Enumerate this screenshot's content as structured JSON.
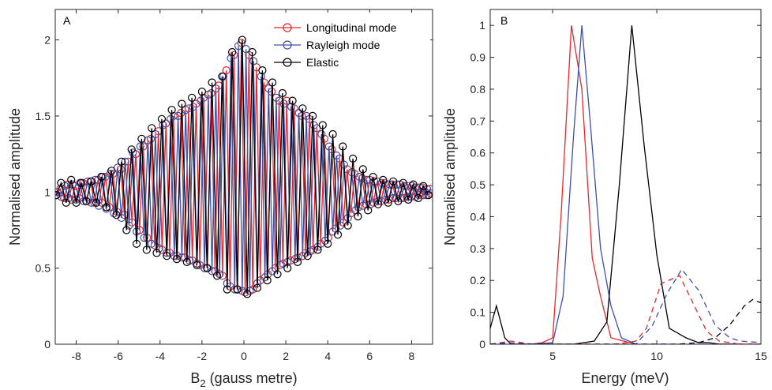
{
  "chart_data": [
    {
      "type": "line",
      "panel_label": "A",
      "xlabel": "B",
      "xlabel_sub": "2",
      "xlabel_suffix": " (gauss metre)",
      "ylabel": "Normalised amplitude",
      "xlim": [
        -9,
        9
      ],
      "ylim": [
        0,
        2.2
      ],
      "xticks": [
        -8,
        -6,
        -4,
        -2,
        0,
        2,
        4,
        6,
        8
      ],
      "yticks": [
        0,
        0.5,
        1,
        1.5,
        2
      ],
      "grid": false,
      "legend_position": "top-right",
      "markers": "circle",
      "series": [
        {
          "name": "Longitudinal mode",
          "color": "#e8262b",
          "x": [
            -8.94,
            -8.76,
            -8.58,
            -8.4,
            -8.22,
            -8.04,
            -7.86,
            -7.68,
            -7.5,
            -7.32,
            -7.14,
            -6.96,
            -6.78,
            -6.6,
            -6.42,
            -6.24,
            -6.06,
            -5.88,
            -5.7,
            -5.52,
            -5.34,
            -5.16,
            -4.98,
            -4.8,
            -4.62,
            -4.44,
            -4.26,
            -4.08,
            -3.9,
            -3.72,
            -3.54,
            -3.36,
            -3.18,
            -3.0,
            -2.82,
            -2.64,
            -2.46,
            -2.28,
            -2.1,
            -1.92,
            -1.74,
            -1.56,
            -1.38,
            -1.2,
            -1.02,
            -0.84,
            -0.66,
            -0.48,
            -0.3,
            -0.12,
            0.06,
            0.24,
            0.42,
            0.6,
            0.78,
            0.96,
            1.14,
            1.32,
            1.5,
            1.68,
            1.86,
            2.04,
            2.22,
            2.4,
            2.58,
            2.76,
            2.94,
            3.12,
            3.3,
            3.48,
            3.66,
            3.84,
            4.02,
            4.2,
            4.38,
            4.56,
            4.74,
            4.92,
            5.1,
            5.28,
            5.46,
            5.64,
            5.82,
            6.0,
            6.18,
            6.36,
            6.54,
            6.72,
            6.9,
            7.08,
            7.26,
            7.44,
            7.62,
            7.8,
            7.98,
            8.16,
            8.34,
            8.52,
            8.7,
            8.88
          ],
          "y": [
            0.98,
            1.02,
            0.96,
            1.05,
            0.95,
            1.04,
            0.96,
            1.06,
            0.94,
            1.07,
            0.93,
            1.08,
            0.93,
            1.1,
            0.9,
            1.12,
            0.87,
            1.15,
            0.85,
            1.2,
            0.8,
            1.25,
            0.75,
            1.3,
            0.7,
            1.35,
            0.65,
            1.4,
            0.62,
            1.45,
            0.6,
            1.5,
            0.58,
            1.52,
            0.57,
            1.55,
            0.55,
            1.58,
            0.52,
            1.62,
            0.5,
            1.65,
            0.48,
            1.7,
            0.45,
            1.8,
            0.38,
            1.9,
            0.36,
            1.98,
            0.34,
            1.9,
            0.36,
            1.82,
            0.42,
            1.72,
            0.46,
            1.66,
            0.5,
            1.6,
            0.53,
            1.6,
            0.55,
            1.55,
            0.57,
            1.5,
            0.6,
            1.48,
            0.62,
            1.42,
            0.66,
            1.35,
            0.7,
            1.28,
            0.76,
            1.22,
            0.8,
            1.15,
            0.86,
            1.12,
            0.9,
            1.09,
            0.92,
            1.08,
            0.93,
            1.07,
            0.94,
            1.06,
            0.95,
            1.05,
            0.96,
            1.05,
            0.96,
            1.04,
            0.97,
            1.03,
            0.98,
            1.03,
            0.98,
            1.02
          ]
        },
        {
          "name": "Rayleigh mode",
          "color": "#3c4fae",
          "x": [
            -8.9,
            -8.72,
            -8.54,
            -8.36,
            -8.18,
            -8.0,
            -7.82,
            -7.64,
            -7.46,
            -7.28,
            -7.1,
            -6.92,
            -6.74,
            -6.56,
            -6.38,
            -6.2,
            -6.02,
            -5.84,
            -5.66,
            -5.48,
            -5.3,
            -5.12,
            -4.94,
            -4.76,
            -4.58,
            -4.4,
            -4.22,
            -4.04,
            -3.86,
            -3.68,
            -3.5,
            -3.32,
            -3.14,
            -2.96,
            -2.78,
            -2.6,
            -2.42,
            -2.24,
            -2.06,
            -1.88,
            -1.7,
            -1.52,
            -1.34,
            -1.16,
            -0.98,
            -0.8,
            -0.62,
            -0.44,
            -0.26,
            -0.08,
            0.1,
            0.28,
            0.46,
            0.64,
            0.82,
            1.0,
            1.18,
            1.36,
            1.54,
            1.72,
            1.9,
            2.08,
            2.26,
            2.44,
            2.62,
            2.8,
            2.98,
            3.16,
            3.34,
            3.52,
            3.7,
            3.88,
            4.06,
            4.24,
            4.42,
            4.6,
            4.78,
            4.96,
            5.14,
            5.32,
            5.5,
            5.68,
            5.86,
            6.04,
            6.22,
            6.4,
            6.58,
            6.76,
            6.94,
            7.12,
            7.3,
            7.48,
            7.66,
            7.84,
            8.02,
            8.2,
            8.38,
            8.56,
            8.74,
            8.92
          ],
          "y": [
            1.0,
            0.97,
            1.04,
            0.96,
            1.05,
            0.95,
            1.06,
            0.94,
            1.07,
            0.93,
            1.08,
            0.91,
            1.1,
            0.89,
            1.12,
            0.86,
            1.16,
            0.83,
            1.2,
            0.78,
            1.26,
            0.74,
            1.3,
            0.7,
            1.34,
            0.66,
            1.38,
            0.63,
            1.44,
            0.6,
            1.48,
            0.58,
            1.5,
            0.57,
            1.54,
            0.55,
            1.56,
            0.53,
            1.6,
            0.5,
            1.64,
            0.48,
            1.68,
            0.46,
            1.76,
            0.4,
            1.88,
            0.36,
            1.96,
            0.35,
            1.94,
            0.35,
            1.86,
            0.4,
            1.76,
            0.44,
            1.68,
            0.48,
            1.62,
            0.52,
            1.58,
            0.54,
            1.56,
            0.56,
            1.52,
            0.58,
            1.5,
            0.61,
            1.44,
            0.64,
            1.38,
            0.68,
            1.3,
            0.74,
            1.24,
            0.78,
            1.18,
            0.83,
            1.13,
            0.88,
            1.1,
            0.91,
            1.08,
            0.92,
            1.07,
            0.94,
            1.06,
            0.95,
            1.05,
            0.96,
            1.05,
            0.96,
            1.04,
            0.97,
            1.04,
            0.97,
            1.03,
            0.98,
            1.02,
            0.99
          ]
        },
        {
          "name": "Elastic",
          "color": "#000000",
          "x": [
            -8.96,
            -8.72,
            -8.48,
            -8.24,
            -8.0,
            -7.76,
            -7.52,
            -7.28,
            -7.04,
            -6.8,
            -6.56,
            -6.32,
            -6.08,
            -5.84,
            -5.6,
            -5.36,
            -5.12,
            -4.88,
            -4.64,
            -4.4,
            -4.16,
            -3.92,
            -3.68,
            -3.44,
            -3.2,
            -2.96,
            -2.72,
            -2.48,
            -2.24,
            -2.0,
            -1.76,
            -1.52,
            -1.28,
            -1.04,
            -0.8,
            -0.56,
            -0.32,
            -0.08,
            0.16,
            0.4,
            0.64,
            0.88,
            1.12,
            1.36,
            1.6,
            1.84,
            2.08,
            2.32,
            2.56,
            2.8,
            3.04,
            3.28,
            3.52,
            3.76,
            4.0,
            4.24,
            4.48,
            4.72,
            4.96,
            5.2,
            5.44,
            5.68,
            5.92,
            6.16,
            6.4,
            6.64,
            6.88,
            7.12,
            7.36,
            7.6,
            7.84,
            8.08,
            8.32,
            8.56,
            8.8
          ],
          "y": [
            0.98,
            1.06,
            0.93,
            1.08,
            0.93,
            1.06,
            0.94,
            1.07,
            0.93,
            1.1,
            0.9,
            1.14,
            0.85,
            1.2,
            0.75,
            1.28,
            0.66,
            1.35,
            0.62,
            1.42,
            0.6,
            1.48,
            0.58,
            1.54,
            0.56,
            1.58,
            0.54,
            1.62,
            0.52,
            1.66,
            0.5,
            1.72,
            0.45,
            1.76,
            0.36,
            1.92,
            0.36,
            2.0,
            0.33,
            1.92,
            0.37,
            1.8,
            0.42,
            1.72,
            0.46,
            1.65,
            0.5,
            1.6,
            0.54,
            1.55,
            0.58,
            1.5,
            0.62,
            1.44,
            0.66,
            1.38,
            0.72,
            1.3,
            0.78,
            1.22,
            0.84,
            1.15,
            0.88,
            1.1,
            0.92,
            1.08,
            0.93,
            1.07,
            0.94,
            1.06,
            0.95,
            1.05,
            0.96,
            1.04,
            0.98
          ]
        }
      ]
    },
    {
      "type": "line",
      "panel_label": "B",
      "xlabel": "Energy (meV)",
      "ylabel": "Normalised amplitude",
      "xlim": [
        2,
        15
      ],
      "ylim": [
        0,
        1.05
      ],
      "xticks": [
        5,
        10,
        15
      ],
      "yticks": [
        0,
        0.1,
        0.2,
        0.3,
        0.4,
        0.5,
        0.6,
        0.7,
        0.8,
        0.9,
        1
      ],
      "grid": false,
      "series": [
        {
          "color": "#e8262b",
          "style": "solid",
          "x": [
            2.0,
            3.0,
            4.0,
            4.5,
            5.0,
            5.4,
            5.9,
            6.4,
            6.9,
            7.3,
            7.8,
            8.4,
            9.0,
            10,
            15
          ],
          "y": [
            0.0,
            0.0,
            0.0,
            0.005,
            0.02,
            0.4,
            1.0,
            0.8,
            0.27,
            0.15,
            0.02,
            0.01,
            0.0,
            0.0,
            0.0
          ]
        },
        {
          "color": "#3c4fae",
          "style": "solid",
          "x": [
            2.0,
            3.0,
            4.0,
            5.0,
            5.5,
            6.0,
            6.4,
            6.8,
            7.3,
            7.8,
            8.3,
            9.0,
            10,
            15
          ],
          "y": [
            0.0,
            0.0,
            0.0,
            0.005,
            0.15,
            0.65,
            1.0,
            0.7,
            0.3,
            0.12,
            0.02,
            0.0,
            0.0,
            0.0
          ]
        },
        {
          "color": "#000000",
          "style": "solid",
          "x": [
            2.0,
            2.3,
            2.7,
            3.0,
            4.0,
            5.0,
            6.0,
            7.0,
            7.6,
            8.2,
            8.8,
            9.4,
            10.0,
            10.6,
            11.4,
            12.0,
            12.5,
            13.0,
            14.0,
            15.0
          ],
          "y": [
            0.05,
            0.12,
            0.02,
            0.0,
            0.0,
            0.0,
            0.0,
            0.01,
            0.07,
            0.5,
            1.0,
            0.62,
            0.28,
            0.05,
            0.02,
            0.005,
            0.005,
            0.0,
            0.0,
            0.0
          ]
        },
        {
          "color": "#e8262b",
          "style": "dashed",
          "x": [
            2.0,
            3.0,
            4.0,
            5.0,
            6.0,
            7.0,
            8.0,
            9.0,
            9.5,
            10.2,
            11.1,
            11.8,
            12.4,
            13.0,
            14.0,
            15.0
          ],
          "y": [
            0.0,
            0.01,
            0.0,
            0.0,
            0.0,
            0.0,
            0.0,
            0.01,
            0.05,
            0.19,
            0.215,
            0.12,
            0.04,
            0.01,
            0.0,
            0.0
          ]
        },
        {
          "color": "#3c4fae",
          "style": "dashed",
          "x": [
            2.0,
            3.0,
            4.0,
            5.0,
            6.0,
            7.0,
            8.0,
            9.0,
            9.8,
            10.5,
            11.2,
            12.0,
            12.8,
            13.5,
            14.0,
            15.0
          ],
          "y": [
            0.0,
            0.005,
            0.0,
            0.0,
            0.0,
            0.0,
            0.0,
            0.0,
            0.06,
            0.16,
            0.235,
            0.17,
            0.06,
            0.02,
            0.01,
            0.005
          ]
        },
        {
          "color": "#000000",
          "style": "dashed",
          "x": [
            2.0,
            4.0,
            6.0,
            8.0,
            10.0,
            11.0,
            12.0,
            12.8,
            13.5,
            14.2,
            14.6,
            15.0
          ],
          "y": [
            0.0,
            0.0,
            0.0,
            0.0,
            0.0,
            0.0,
            0.005,
            0.02,
            0.06,
            0.12,
            0.14,
            0.13
          ]
        }
      ]
    }
  ]
}
